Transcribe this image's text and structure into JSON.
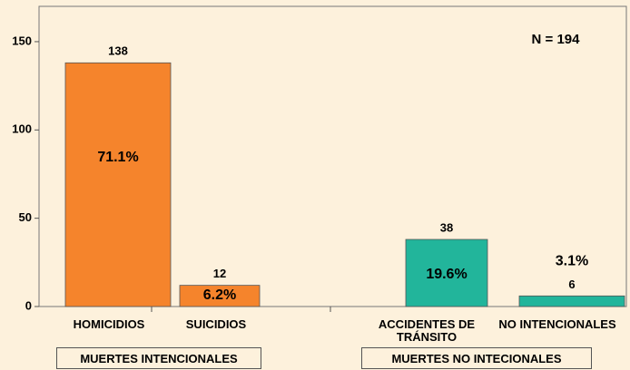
{
  "chart_data": {
    "type": "bar",
    "categories": [
      "HOMICIDIOS",
      "SUICIDIOS",
      null,
      "ACCIDENTES DE TRÁNSITO",
      "NO INTENCIONALES"
    ],
    "values": [
      138,
      12,
      null,
      38,
      6
    ],
    "percent_labels": [
      "71.1%",
      "6.2%",
      null,
      "19.6%",
      "3.1%"
    ],
    "colors": [
      "#f5842c",
      "#f5842c",
      null,
      "#22b59b",
      "#22b59b"
    ],
    "ylim": [
      0,
      170
    ],
    "yticks": [
      0,
      50,
      100,
      150
    ],
    "annotation": "N = 194",
    "groups": [
      "MUERTES INTENCIONALES",
      "MUERTES NO INTECIONALES"
    ]
  }
}
